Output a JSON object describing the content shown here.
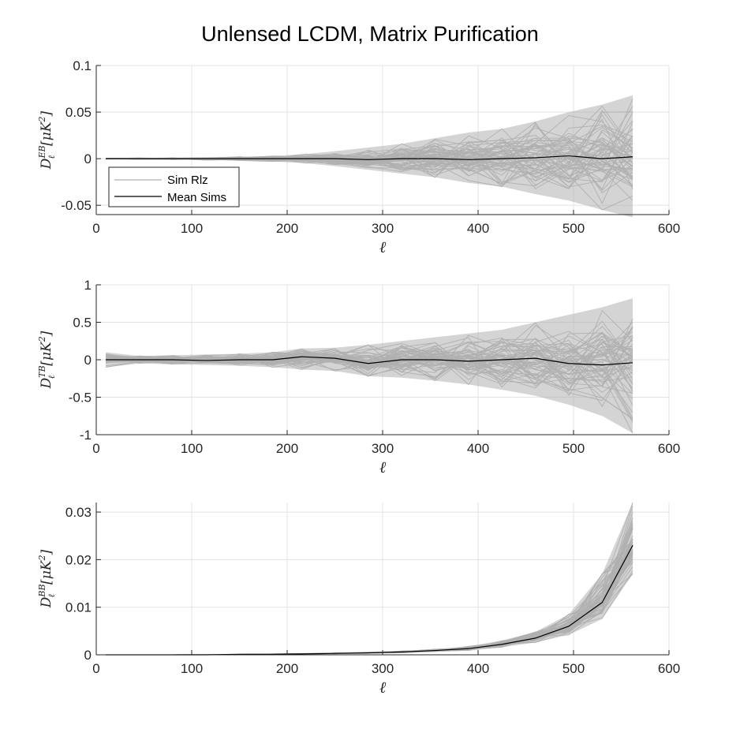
{
  "figure": {
    "title": "Unlensed LCDM, Matrix Purification"
  },
  "colors": {
    "sim": "#b0b0b0",
    "mean": "#000000",
    "grid": "#e3e3e3",
    "axis": "#262626"
  },
  "legend": {
    "placement": "bottom-left of top panel",
    "entries": [
      "Sim Rlz",
      "Mean Sims"
    ]
  },
  "chart_data": [
    {
      "type": "line",
      "xlabel": "ℓ",
      "ylabel": {
        "base": "D",
        "sub": "ℓ",
        "sup": "EB",
        "unit": "[μK",
        "unit_sup": "2",
        "close": "]"
      },
      "xlim": [
        0,
        600
      ],
      "ylim": [
        -0.06,
        0.1
      ],
      "xticks": [
        0,
        100,
        200,
        300,
        400,
        500,
        600
      ],
      "xtick_labels": [
        "0",
        "100",
        "200",
        "300",
        "400",
        "500",
        "600"
      ],
      "yticks": [
        -0.05,
        0,
        0.05,
        0.1
      ],
      "ytick_labels": [
        "-0.05",
        "0",
        "0.05",
        "0.1"
      ],
      "grid": true,
      "x": [
        10,
        45,
        80,
        115,
        150,
        185,
        220,
        250,
        285,
        320,
        355,
        390,
        425,
        460,
        495,
        530,
        562
      ],
      "series": [
        {
          "name": "Mean Sims",
          "values": [
            0,
            0,
            0,
            0,
            0,
            0,
            0,
            0,
            -0.001,
            0,
            0,
            -0.001,
            0,
            0.001,
            0.003,
            0,
            0.002
          ]
        }
      ],
      "sim_band": {
        "name": "Sim Rlz",
        "upper": [
          0.0005,
          0.0008,
          0.001,
          0.0015,
          0.002,
          0.003,
          0.005,
          0.008,
          0.012,
          0.016,
          0.022,
          0.028,
          0.032,
          0.04,
          0.05,
          0.058,
          0.068
        ],
        "lower": [
          -0.0005,
          -0.0008,
          -0.001,
          -0.0015,
          -0.002,
          -0.003,
          -0.005,
          -0.008,
          -0.012,
          -0.016,
          -0.02,
          -0.026,
          -0.03,
          -0.038,
          -0.045,
          -0.055,
          -0.063
        ]
      }
    },
    {
      "type": "line",
      "xlabel": "ℓ",
      "ylabel": {
        "base": "D",
        "sub": "ℓ",
        "sup": "TB",
        "unit": "[μK",
        "unit_sup": "2",
        "close": "]"
      },
      "xlim": [
        0,
        600
      ],
      "ylim": [
        -1,
        1
      ],
      "xticks": [
        0,
        100,
        200,
        300,
        400,
        500,
        600
      ],
      "xtick_labels": [
        "0",
        "100",
        "200",
        "300",
        "400",
        "500",
        "600"
      ],
      "yticks": [
        -1,
        -0.5,
        0,
        0.5,
        1
      ],
      "ytick_labels": [
        "-1",
        "-0.5",
        "0",
        "0.5",
        "1"
      ],
      "grid": true,
      "x": [
        10,
        45,
        80,
        115,
        150,
        185,
        215,
        250,
        285,
        320,
        355,
        390,
        425,
        460,
        495,
        530,
        562
      ],
      "series": [
        {
          "name": "Mean Sims",
          "values": [
            0,
            0,
            0,
            -0.01,
            0,
            0,
            0.04,
            0.02,
            -0.05,
            0,
            0,
            -0.02,
            0,
            0.02,
            -0.05,
            -0.07,
            -0.04
          ]
        }
      ],
      "sim_band": {
        "name": "Sim Rlz",
        "upper": [
          0.1,
          0.05,
          0.06,
          0.07,
          0.08,
          0.1,
          0.15,
          0.16,
          0.2,
          0.25,
          0.3,
          0.35,
          0.4,
          0.5,
          0.6,
          0.7,
          0.82
        ],
        "lower": [
          -0.1,
          -0.05,
          -0.06,
          -0.07,
          -0.08,
          -0.1,
          -0.13,
          -0.15,
          -0.22,
          -0.24,
          -0.28,
          -0.33,
          -0.4,
          -0.48,
          -0.6,
          -0.75,
          -0.98
        ]
      }
    },
    {
      "type": "line",
      "xlabel": "ℓ",
      "ylabel": {
        "base": "D",
        "sub": "ℓ",
        "sup": "BB",
        "unit": "[μK",
        "unit_sup": "2",
        "close": "]"
      },
      "xlim": [
        0,
        600
      ],
      "ylim": [
        0,
        0.032
      ],
      "xticks": [
        0,
        100,
        200,
        300,
        400,
        500,
        600
      ],
      "xtick_labels": [
        "0",
        "100",
        "200",
        "300",
        "400",
        "500",
        "600"
      ],
      "yticks": [
        0,
        0.01,
        0.02,
        0.03
      ],
      "ytick_labels": [
        "0",
        "0.01",
        "0.02",
        "0.03"
      ],
      "grid": true,
      "x": [
        10,
        45,
        80,
        115,
        150,
        185,
        220,
        250,
        285,
        320,
        355,
        390,
        425,
        460,
        495,
        530,
        562
      ],
      "series": [
        {
          "name": "Mean Sims",
          "values": [
            0,
            0,
            0,
            0,
            0.0001,
            0.0001,
            0.0002,
            0.0003,
            0.0004,
            0.0006,
            0.0009,
            0.0013,
            0.0022,
            0.0035,
            0.006,
            0.011,
            0.023
          ]
        }
      ],
      "sim_band": {
        "name": "Sim Rlz",
        "upper": [
          0,
          0,
          0,
          0.0001,
          0.0001,
          0.0002,
          0.0003,
          0.0004,
          0.0006,
          0.0008,
          0.0012,
          0.0018,
          0.003,
          0.0048,
          0.0085,
          0.017,
          0.032
        ],
        "lower": [
          0,
          0,
          0,
          0,
          0,
          0,
          0.0001,
          0.0002,
          0.0003,
          0.0004,
          0.0006,
          0.0009,
          0.0016,
          0.0026,
          0.0042,
          0.0075,
          0.017
        ]
      }
    }
  ]
}
